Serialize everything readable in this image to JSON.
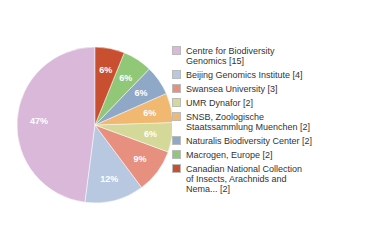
{
  "chart_data": {
    "type": "pie",
    "categories": [
      "Centre for Biodiversity\nGenomics [15]",
      "Beijing Genomics Institute [4]",
      "Swansea University [3]",
      "UMR Dynafor [2]",
      "SNSB, Zoologische\nStaatssammlung Muenchen [2]",
      "Naturalis Biodiversity Center [2]",
      "Macrogen, Europe [2]",
      "Canadian National Collection\nof Insects, Arachnids and\nNema... [2]"
    ],
    "values": [
      47,
      12,
      9,
      6,
      6,
      6,
      6,
      6
    ],
    "value_labels": [
      "47%",
      "12%",
      "9%",
      "6%",
      "6%",
      "6%",
      "6%",
      "6%"
    ],
    "colors": [
      "#d9b8d9",
      "#b8c8e0",
      "#e89080",
      "#d4d898",
      "#f0b870",
      "#90a8c8",
      "#90c878",
      "#c85030"
    ],
    "data_labels": true,
    "legend": "right"
  }
}
